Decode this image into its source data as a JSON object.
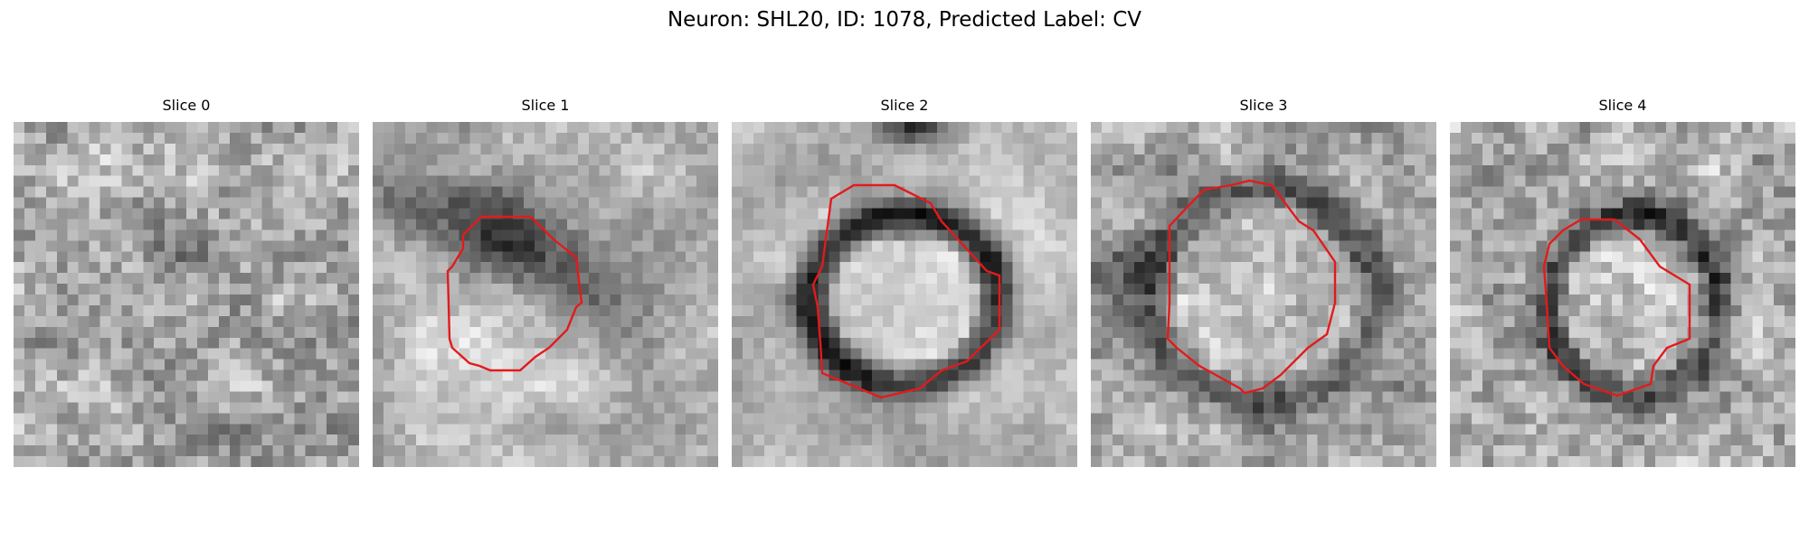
{
  "figure": {
    "title": "Neuron: SHL20, ID: 1078, Predicted Label: CV"
  },
  "panels": [
    {
      "title": "Slice 0",
      "contour": false
    },
    {
      "title": "Slice 1",
      "contour": true
    },
    {
      "title": "Slice 2",
      "contour": true
    },
    {
      "title": "Slice 3",
      "contour": true
    },
    {
      "title": "Slice 4",
      "contour": true
    }
  ],
  "colors": {
    "contour": "#e31a1c",
    "background": "#ffffff",
    "colormap": "grayscale"
  }
}
